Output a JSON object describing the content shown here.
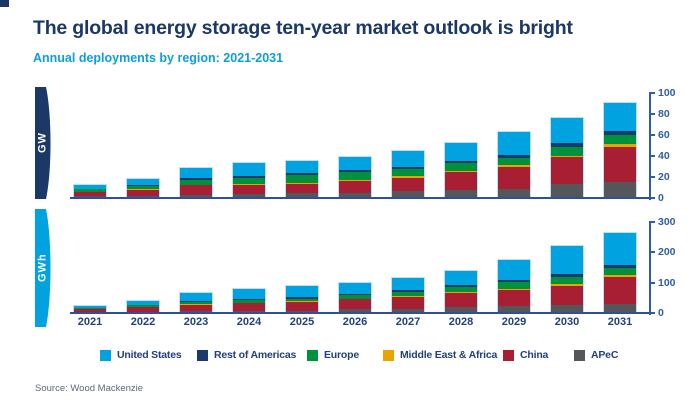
{
  "page": {
    "title": "The global energy storage ten-year market outlook is bright",
    "subtitle": "Annual deployments by region: 2021-2031",
    "source": "Source: Wood Mackenzie"
  },
  "colors": {
    "title_navy": "#1B3866",
    "subtitle_blue": "#0C9FDC",
    "axis_blue": "#2E5CA8",
    "year_label_navy": "#21407E",
    "baseline_navy": "#2F4E9E",
    "ribbon_gw": "#1B3866",
    "ribbon_gwh": "#00A3E0",
    "source_gray": "#5A6B7D"
  },
  "legend": {
    "position": "bottom",
    "items": [
      {
        "label": "United States",
        "color": "#00A3E0"
      },
      {
        "label": "Rest of Americas",
        "color": "#1B3A6B"
      },
      {
        "label": "Europe",
        "color": "#00913C"
      },
      {
        "label": "Middle East & Africa",
        "color": "#EAA400"
      },
      {
        "label": "China",
        "color": "#A81F33"
      },
      {
        "label": "APeC",
        "color": "#54565A"
      }
    ]
  },
  "chart_data": [
    {
      "type": "bar",
      "stacked": true,
      "unit_label": "GW",
      "axis_side": "right",
      "grid": false,
      "categories": [
        "2021",
        "2022",
        "2023",
        "2024",
        "2025",
        "2026",
        "2027",
        "2028",
        "2029",
        "2030",
        "2031"
      ],
      "ylim": [
        0,
        100
      ],
      "yticks": [
        0,
        20,
        40,
        60,
        80,
        100
      ],
      "show_x_labels": false,
      "stack_order": "bottom-to-top",
      "series": [
        {
          "name": "APeC",
          "color": "#54565A",
          "values": [
            1.5,
            2,
            3,
            3.5,
            4.5,
            5,
            7,
            8,
            9,
            13,
            15
          ]
        },
        {
          "name": "China",
          "color": "#A81F33",
          "values": [
            4,
            6,
            9,
            8.5,
            9,
            11.5,
            12.5,
            17,
            21,
            26,
            34
          ]
        },
        {
          "name": "Middle East & Africa",
          "color": "#EAA400",
          "values": [
            0.3,
            0.4,
            0.5,
            1,
            1,
            1,
            1,
            1,
            1.5,
            1.5,
            2
          ]
        },
        {
          "name": "Europe",
          "color": "#00913C",
          "values": [
            2.5,
            3,
            5,
            6,
            7,
            7.5,
            7.5,
            7.5,
            7,
            8.5,
            9
          ]
        },
        {
          "name": "Rest of Americas",
          "color": "#1B3A6B",
          "values": [
            0.7,
            0.6,
            1.5,
            2,
            2,
            2,
            2,
            2,
            2.5,
            3,
            4
          ]
        },
        {
          "name": "United States",
          "color": "#00A3E0",
          "values": [
            3,
            6,
            10,
            12,
            12,
            12,
            15,
            16.5,
            22,
            24,
            27
          ]
        }
      ],
      "totals": [
        12,
        18,
        29,
        33,
        35.5,
        39,
        45,
        52,
        63,
        76,
        91
      ]
    },
    {
      "type": "bar",
      "stacked": true,
      "unit_label": "GWh",
      "axis_side": "right",
      "grid": false,
      "categories": [
        "2021",
        "2022",
        "2023",
        "2024",
        "2025",
        "2026",
        "2027",
        "2028",
        "2029",
        "2030",
        "2031"
      ],
      "ylim": [
        0,
        300
      ],
      "yticks": [
        0,
        100,
        200,
        300
      ],
      "show_x_labels": true,
      "stack_order": "bottom-to-top",
      "series": [
        {
          "name": "APeC",
          "color": "#54565A",
          "values": [
            2,
            3,
            5,
            6,
            7,
            12,
            14,
            20,
            23,
            28,
            30
          ]
        },
        {
          "name": "China",
          "color": "#A81F33",
          "values": [
            10,
            16,
            23,
            26,
            30,
            33,
            38,
            46,
            54,
            62,
            90
          ]
        },
        {
          "name": "Middle East & Africa",
          "color": "#EAA400",
          "values": [
            0.5,
            1,
            2,
            2,
            2,
            2,
            3,
            3,
            3,
            5,
            5
          ]
        },
        {
          "name": "Europe",
          "color": "#00913C",
          "values": [
            3,
            5,
            7,
            8,
            8,
            12,
            15,
            18,
            22,
            25,
            25
          ]
        },
        {
          "name": "Rest of Americas",
          "color": "#1B3A6B",
          "values": [
            1,
            2,
            4,
            5,
            5,
            5,
            5,
            6,
            8,
            10,
            8
          ]
        },
        {
          "name": "United States",
          "color": "#00A3E0",
          "values": [
            8,
            13,
            24,
            33,
            36,
            34,
            40,
            47,
            65,
            90,
            107
          ]
        }
      ],
      "totals": [
        24.5,
        40,
        65,
        80,
        88,
        98,
        115,
        140,
        175,
        220,
        265
      ]
    }
  ]
}
